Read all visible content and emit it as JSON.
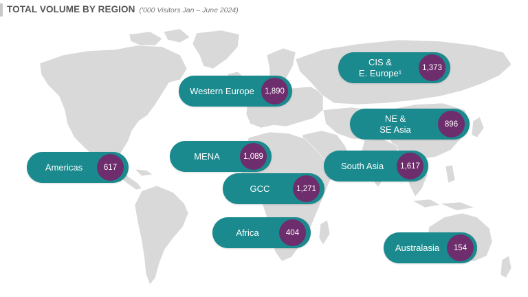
{
  "header": {
    "title": "TOTAL VOLUME BY REGION",
    "subtitle": "('000 Visitors Jan – June 2024)"
  },
  "regions": {
    "americas": {
      "name": "Americas",
      "value": "617"
    },
    "western_europe": {
      "name": "Western Europe",
      "value": "1,890"
    },
    "cis": {
      "name": "CIS &\nE. Europe¹",
      "value": "1,373"
    },
    "ne_se_asia": {
      "name": "NE &\nSE Asia",
      "value": "896"
    },
    "mena": {
      "name": "MENA",
      "value": "1,089"
    },
    "south_asia": {
      "name": "South Asia",
      "value": "1,617"
    },
    "gcc": {
      "name": "GCC",
      "value": "1,271"
    },
    "africa": {
      "name": "Africa",
      "value": "404"
    },
    "australasia": {
      "name": "Australasia",
      "value": "154"
    }
  },
  "colors": {
    "pill": "#1a8a8e",
    "value_circle": "#6e2d6c",
    "land": "#d9d9d9",
    "title": "#555555"
  }
}
